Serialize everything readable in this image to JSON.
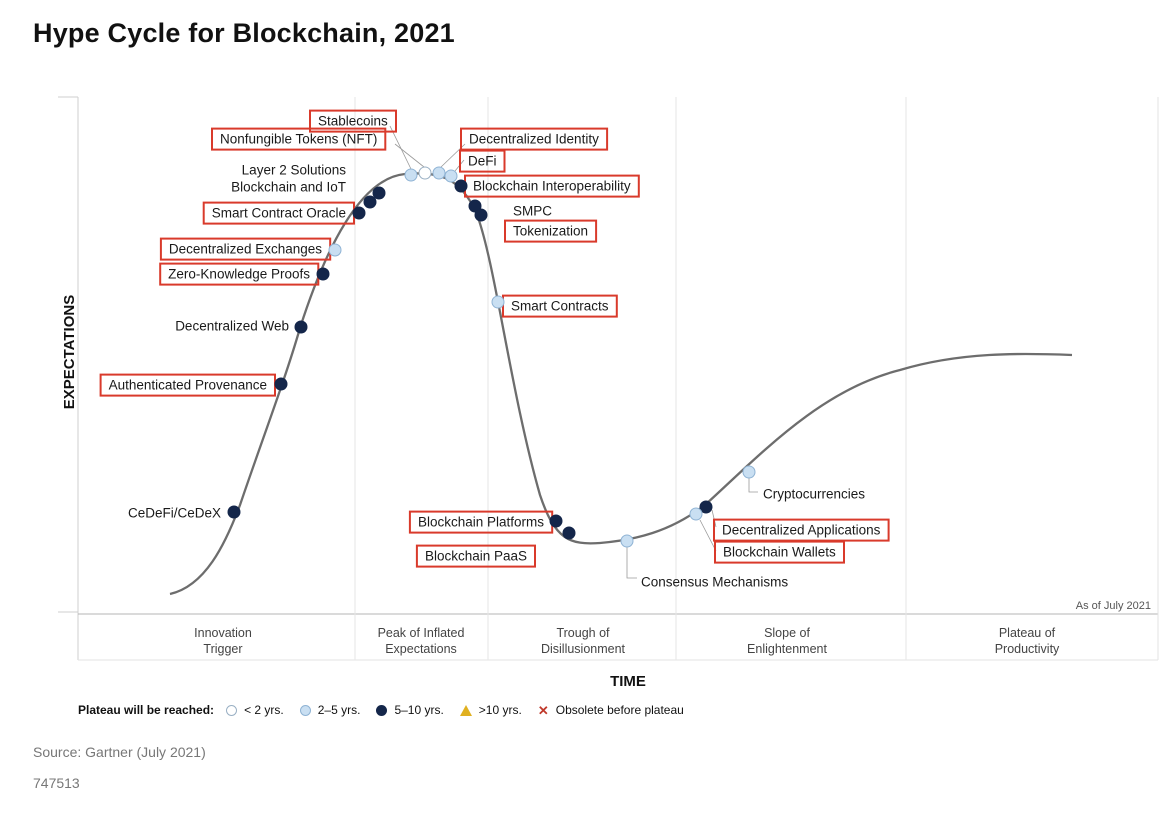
{
  "title": "Hype Cycle for Blockchain, 2021",
  "chart_data": {
    "type": "hype-cycle",
    "title": "Hype Cycle for Blockchain, 2021",
    "xlabel": "TIME",
    "ylabel": "EXPECTATIONS",
    "as_of": "As of July 2021",
    "phases": [
      "Innovation\nTrigger",
      "Peak of Inflated\nExpectations",
      "Trough of\nDisillusionment",
      "Slope of\nEnlightenment",
      "Plateau of\nProductivity"
    ],
    "points": [
      {
        "name": "Stablecoins",
        "plateau": "2-5",
        "highlighted": true
      },
      {
        "name": "Nonfungible Tokens (NFT)",
        "plateau": "<2",
        "highlighted": true
      },
      {
        "name": "Layer 2 Solutions",
        "plateau": "5-10",
        "highlighted": false
      },
      {
        "name": "Blockchain and IoT",
        "plateau": "5-10",
        "highlighted": false
      },
      {
        "name": "Smart Contract Oracle",
        "plateau": "5-10",
        "highlighted": true
      },
      {
        "name": "Decentralized Exchanges",
        "plateau": "2-5",
        "highlighted": true
      },
      {
        "name": "Zero-Knowledge Proofs",
        "plateau": "5-10",
        "highlighted": true
      },
      {
        "name": "Decentralized Web",
        "plateau": "5-10",
        "highlighted": false
      },
      {
        "name": "Authenticated Provenance",
        "plateau": "5-10",
        "highlighted": true
      },
      {
        "name": "CeDeFi/CeDeX",
        "plateau": "5-10",
        "highlighted": false
      },
      {
        "name": "Decentralized Identity",
        "plateau": "2-5",
        "highlighted": true
      },
      {
        "name": "DeFi",
        "plateau": "2-5",
        "highlighted": true
      },
      {
        "name": "Blockchain Interoperability",
        "plateau": "5-10",
        "highlighted": true
      },
      {
        "name": "SMPC",
        "plateau": "5-10",
        "highlighted": false
      },
      {
        "name": "Tokenization",
        "plateau": "5-10",
        "highlighted": true
      },
      {
        "name": "Smart Contracts",
        "plateau": "2-5",
        "highlighted": true
      },
      {
        "name": "Blockchain Platforms",
        "plateau": "5-10",
        "highlighted": true
      },
      {
        "name": "Blockchain PaaS",
        "plateau": "5-10",
        "highlighted": true
      },
      {
        "name": "Consensus Mechanisms",
        "plateau": "2-5",
        "highlighted": false
      },
      {
        "name": "Cryptocurrencies",
        "plateau": "2-5",
        "highlighted": false
      },
      {
        "name": "Decentralized Applications",
        "plateau": "5-10",
        "highlighted": true
      },
      {
        "name": "Blockchain Wallets",
        "plateau": "2-5",
        "highlighted": true
      }
    ]
  },
  "legend": {
    "title": "Plateau will be reached:",
    "items": [
      "< 2 yrs.",
      "2–5 yrs.",
      "5–10 yrs.",
      ">10 yrs.",
      "Obsolete before plateau"
    ]
  },
  "source": "Source: Gartner (July 2021)",
  "doc_id": "747513",
  "colors": {
    "lt2": "#ffffff",
    "y2to5": "#c9dff2",
    "y5to10": "#14264a",
    "gt10": "#e0b020",
    "obsolete": "#c0392b",
    "highlight_box": "#d93a2b",
    "curve": "#6d6d6d"
  }
}
